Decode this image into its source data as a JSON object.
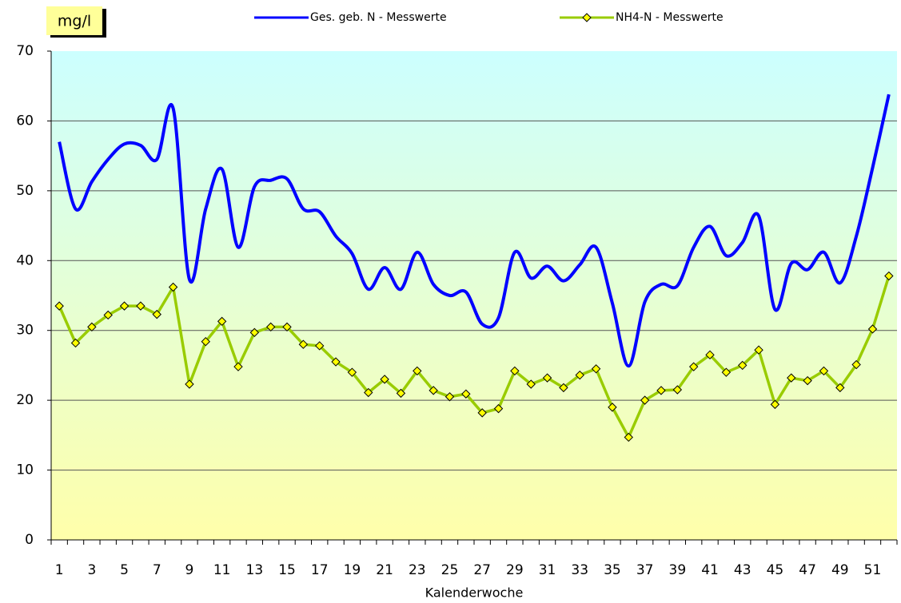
{
  "chart_data": {
    "type": "line",
    "y_label": "mg/l",
    "x_label": "Kalenderwoche",
    "categories": [
      "1",
      null,
      "3",
      null,
      "5",
      null,
      "7",
      null,
      "9",
      null,
      "11",
      null,
      "13",
      null,
      "15",
      null,
      "17",
      null,
      "19",
      null,
      "21",
      null,
      "23",
      null,
      "25",
      null,
      "27",
      null,
      "29",
      null,
      "31",
      null,
      "33",
      null,
      "35",
      null,
      "37",
      null,
      "39",
      null,
      "41",
      null,
      "43",
      null,
      "45",
      null,
      "47",
      null,
      "49",
      null,
      "51",
      null
    ],
    "series": [
      {
        "name": "Ges. geb. N - Messwerte",
        "color": "#0000ff",
        "smooth": true,
        "marker": null,
        "values": [
          57.0,
          47.4,
          51.3,
          54.5,
          56.7,
          56.5,
          54.5,
          61.8,
          37.3,
          47.4,
          53.1,
          41.9,
          50.6,
          51.5,
          51.7,
          47.4,
          47.0,
          43.5,
          41.0,
          35.9,
          39.0,
          35.9,
          41.2,
          36.6,
          35.0,
          35.5,
          30.9,
          31.8,
          41.2,
          37.5,
          39.2,
          37.1,
          39.4,
          41.9,
          33.9,
          24.9,
          34.1,
          36.6,
          36.4,
          41.9,
          44.9,
          40.7,
          42.6,
          46.4,
          33.0,
          39.6,
          38.7,
          41.2,
          36.8,
          43.5,
          53.3,
          63.8
        ]
      },
      {
        "name": "NH4-N - Messwerte",
        "color": "#99cc00",
        "smooth": false,
        "marker": "diamond",
        "values": [
          33.5,
          28.2,
          30.5,
          32.2,
          33.5,
          33.5,
          32.3,
          36.2,
          22.3,
          28.4,
          31.3,
          24.8,
          29.7,
          30.5,
          30.5,
          28.0,
          27.8,
          25.5,
          24.0,
          21.1,
          23.0,
          21.0,
          24.2,
          21.4,
          20.5,
          20.9,
          18.2,
          18.8,
          24.2,
          22.3,
          23.2,
          21.8,
          23.6,
          24.5,
          19.0,
          14.7,
          20.0,
          21.4,
          21.5,
          24.8,
          26.5,
          24.0,
          25.0,
          27.2,
          19.4,
          23.2,
          22.8,
          24.2,
          21.8,
          25.1,
          30.2,
          37.8
        ]
      }
    ],
    "ylim": [
      0,
      70
    ],
    "yticks": [
      0,
      10,
      20,
      30,
      40,
      50,
      60,
      70
    ],
    "grid": true,
    "legend": "top"
  }
}
